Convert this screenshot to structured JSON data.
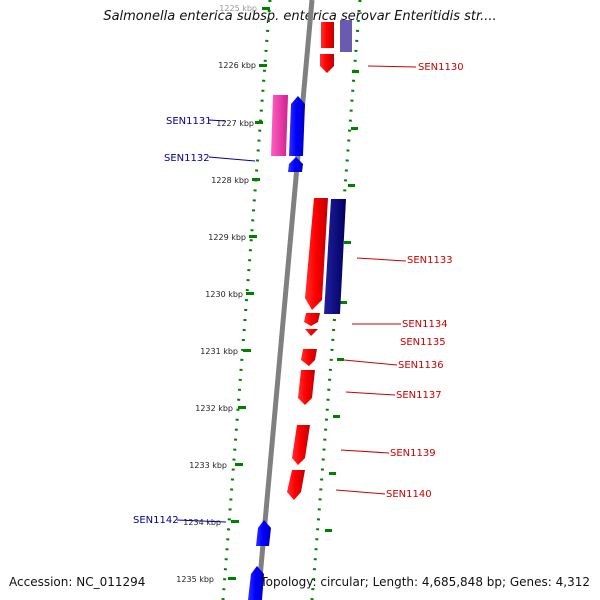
{
  "title": "Salmonella enterica subsp. enterica serovar Enteritidis str....",
  "footer": {
    "accession": "Accession: NC_011294",
    "summary": "Topology: circular; Length: 4,685,848 bp; Genes: 4,312"
  },
  "ticks": [
    "1225 kbp",
    "1226 kbp",
    "1227 kbp",
    "1228 kbp",
    "1229 kbp",
    "1230 kbp",
    "1231 kbp",
    "1232 kbp",
    "1233 kbp",
    "1234 kbp",
    "1235 kbp"
  ],
  "gene_labels": {
    "SEN1130": "SEN1130",
    "SEN1131": "SEN1131",
    "SEN1132": "SEN1132",
    "SEN1133": "SEN1133",
    "SEN1134": "SEN1134",
    "SEN1135": "SEN1135",
    "SEN1136": "SEN1136",
    "SEN1137": "SEN1137",
    "SEN1139": "SEN1139",
    "SEN1140": "SEN1140",
    "SEN1142": "SEN1142"
  },
  "colors": {
    "reverse_strand": "#ff0000",
    "forward_strand": "#0000ff",
    "dark_blue": "#000080",
    "magenta": "#e040a0",
    "tick": "#008000",
    "backbone": "#808080",
    "label_red": "#cc0000",
    "label_blue": "#000099"
  }
}
